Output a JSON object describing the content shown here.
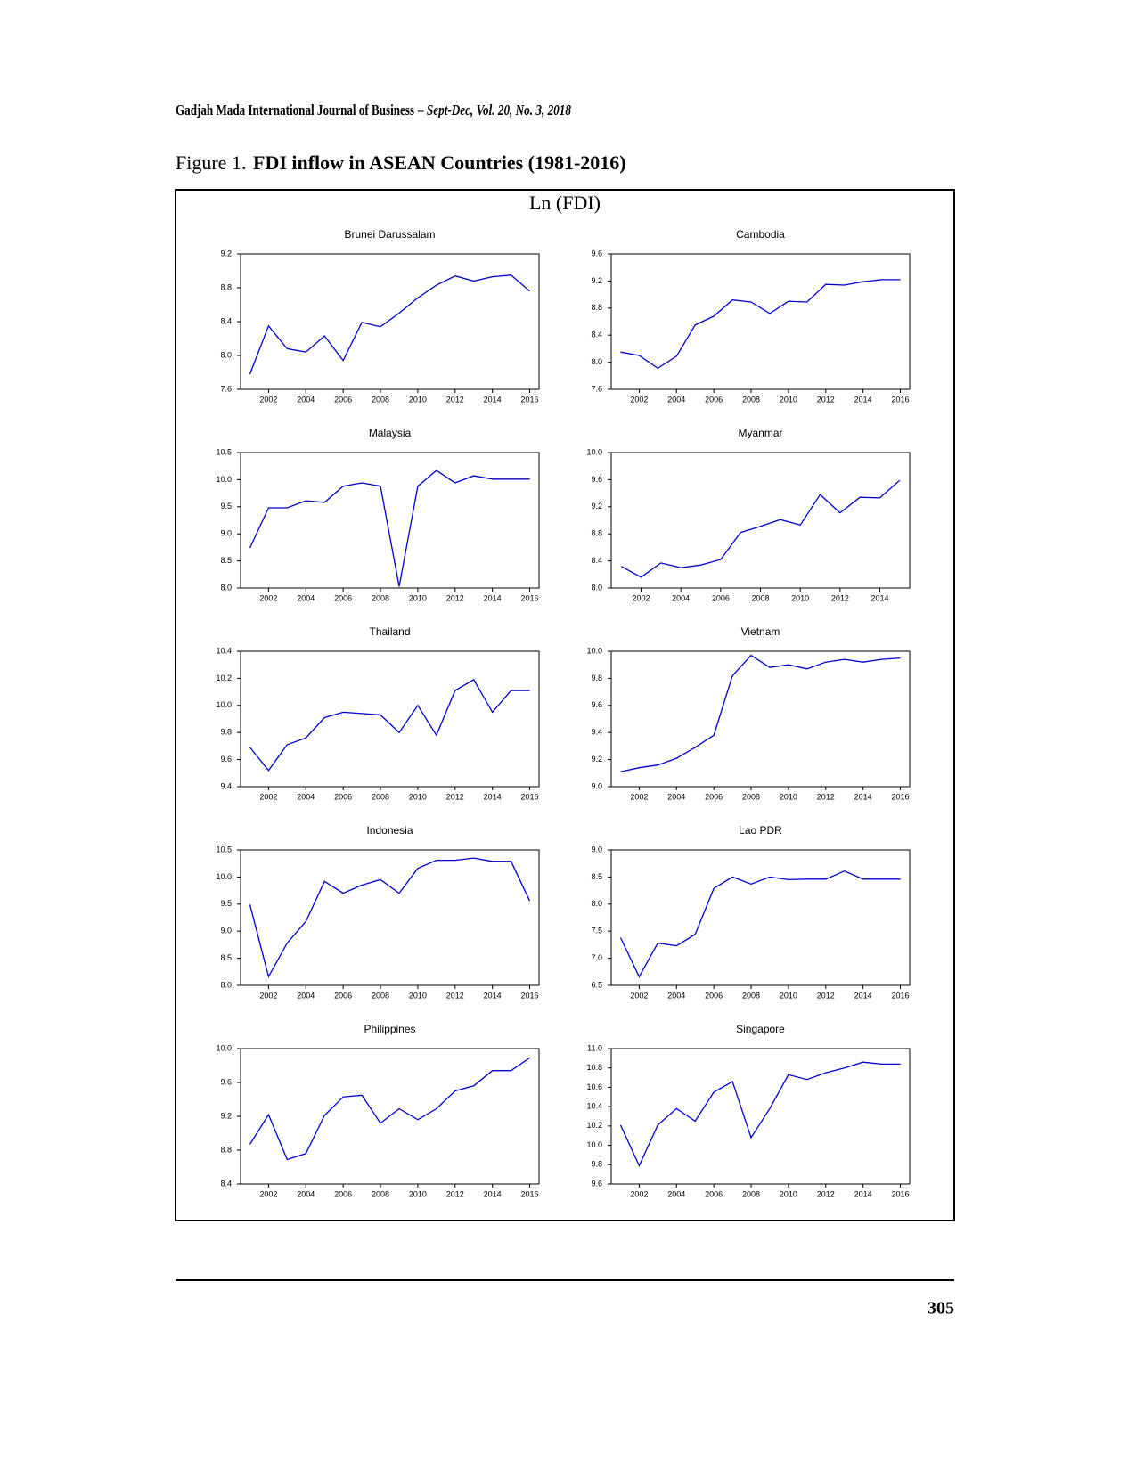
{
  "header": {
    "journal": "Gadjah Mada International Journal of Business",
    "issue": "– Sept-Dec, Vol. 20, No. 3, 2018"
  },
  "caption": {
    "label": "Figure 1.",
    "title": "FDI inflow in ASEAN Countries (1981-2016)"
  },
  "panel_title": "Ln (FDI)",
  "page_number": "305",
  "chart_data": [
    {
      "type": "line",
      "title": "Brunei Darussalam",
      "x": [
        2001,
        2002,
        2003,
        2004,
        2005,
        2006,
        2007,
        2008,
        2009,
        2010,
        2011,
        2012,
        2013,
        2014,
        2015,
        2016
      ],
      "series": [
        {
          "name": "Ln (FDI)",
          "color": "#0000cc",
          "values": [
            7.78,
            8.35,
            8.08,
            8.04,
            8.23,
            7.94,
            8.39,
            8.34,
            8.5,
            8.68,
            8.83,
            8.94,
            8.88,
            8.93,
            8.95,
            8.76
          ]
        }
      ],
      "xlim": [
        2000.5,
        2016.5
      ],
      "xticks": [
        2002,
        2004,
        2006,
        2008,
        2010,
        2012,
        2014,
        2016
      ],
      "ylim": [
        7.6,
        9.2
      ],
      "yticks": [
        7.6,
        {
          "value": 8,
          "label": "8.0"
        },
        8.4,
        8.8,
        9.2
      ]
    },
    {
      "type": "line",
      "title": "Cambodia",
      "x": [
        2001,
        2002,
        2003,
        2004,
        2005,
        2006,
        2007,
        2008,
        2009,
        2010,
        2011,
        2012,
        2013,
        2014,
        2015,
        2016
      ],
      "series": [
        {
          "name": "Ln (FDI)",
          "color": "#0000cc",
          "values": [
            8.15,
            8.1,
            7.91,
            8.09,
            8.55,
            8.68,
            8.92,
            8.89,
            8.72,
            8.9,
            8.89,
            9.15,
            9.14,
            9.19,
            9.22,
            9.22
          ]
        }
      ],
      "xlim": [
        2000.5,
        2016.5
      ],
      "xticks": [
        2002,
        2004,
        2006,
        2008,
        2010,
        2012,
        2014,
        2016
      ],
      "ylim": [
        7.6,
        9.6
      ],
      "yticks": [
        7.6,
        {
          "value": 8,
          "label": "8.0"
        },
        8.4,
        8.8,
        9.2,
        9.6
      ]
    },
    {
      "type": "line",
      "title": "Malaysia",
      "x": [
        2001,
        2002,
        2003,
        2004,
        2005,
        2006,
        2007,
        2008,
        2009,
        2010,
        2011,
        2012,
        2013,
        2014,
        2015,
        2016
      ],
      "series": [
        {
          "name": "Ln (FDI)",
          "color": "#0000cc",
          "values": [
            8.74,
            9.48,
            9.48,
            9.61,
            9.58,
            9.88,
            9.94,
            9.88,
            8.03,
            9.88,
            10.17,
            9.94,
            10.07,
            10.01,
            10.01,
            10.01
          ]
        }
      ],
      "xlim": [
        2000.5,
        2016.5
      ],
      "xticks": [
        2002,
        2004,
        2006,
        2008,
        2010,
        2012,
        2014,
        2016
      ],
      "ylim": [
        8,
        10.5
      ],
      "yticks": [
        {
          "value": 8,
          "label": "8.0"
        },
        8.5,
        {
          "value": 9,
          "label": "9.0"
        },
        9.5,
        {
          "value": 10,
          "label": "10.0"
        },
        10.5
      ]
    },
    {
      "type": "line",
      "title": "Myanmar",
      "x": [
        2001,
        2002,
        2003,
        2004,
        2005,
        2006,
        2007,
        2008,
        2009,
        2010,
        2011,
        2012,
        2013,
        2014,
        2015
      ],
      "series": [
        {
          "name": "Ln (FDI)",
          "color": "#0000cc",
          "values": [
            8.32,
            8.16,
            8.37,
            8.3,
            8.34,
            8.42,
            8.82,
            8.91,
            9.01,
            8.93,
            9.38,
            9.11,
            9.34,
            9.33,
            9.59
          ]
        }
      ],
      "xlim": [
        2000.5,
        2015.5
      ],
      "xticks": [
        2002,
        2004,
        2006,
        2008,
        2010,
        2012,
        2014
      ],
      "ylim": [
        8,
        10
      ],
      "yticks": [
        {
          "value": 8,
          "label": "8.0"
        },
        8.4,
        8.8,
        9.2,
        9.6,
        {
          "value": 10,
          "label": "10.0"
        }
      ]
    },
    {
      "type": "line",
      "title": "Thailand",
      "x": [
        2001,
        2002,
        2003,
        2004,
        2005,
        2006,
        2007,
        2008,
        2009,
        2010,
        2011,
        2012,
        2013,
        2014,
        2015,
        2016
      ],
      "series": [
        {
          "name": "Ln (FDI)",
          "color": "#0000cc",
          "values": [
            9.69,
            9.52,
            9.71,
            9.76,
            9.91,
            9.95,
            9.94,
            9.93,
            9.8,
            10,
            9.78,
            10.11,
            10.19,
            9.95,
            10.11,
            10.11
          ]
        }
      ],
      "xlim": [
        2000.5,
        2016.5
      ],
      "xticks": [
        2002,
        2004,
        2006,
        2008,
        2010,
        2012,
        2014,
        2016
      ],
      "ylim": [
        9.4,
        10.4
      ],
      "yticks": [
        9.4,
        9.6,
        9.8,
        {
          "value": 10,
          "label": "10.0"
        },
        10.2,
        10.4
      ]
    },
    {
      "type": "line",
      "title": "Vietnam",
      "x": [
        2001,
        2002,
        2003,
        2004,
        2005,
        2006,
        2007,
        2008,
        2009,
        2010,
        2011,
        2012,
        2013,
        2014,
        2015,
        2016
      ],
      "series": [
        {
          "name": "Ln (FDI)",
          "color": "#0000cc",
          "values": [
            9.11,
            9.14,
            9.16,
            9.21,
            9.29,
            9.38,
            9.82,
            9.97,
            9.88,
            9.9,
            9.87,
            9.92,
            9.94,
            9.92,
            9.94,
            9.95
          ]
        }
      ],
      "xlim": [
        2000.5,
        2016.5
      ],
      "xticks": [
        2002,
        2004,
        2006,
        2008,
        2010,
        2012,
        2014,
        2016
      ],
      "ylim": [
        9,
        10
      ],
      "yticks": [
        {
          "value": 9,
          "label": "9.0"
        },
        9.2,
        9.4,
        9.6,
        9.8,
        {
          "value": 10,
          "label": "10.0"
        }
      ]
    },
    {
      "type": "line",
      "title": "Indonesia",
      "x": [
        2001,
        2002,
        2003,
        2004,
        2005,
        2006,
        2007,
        2008,
        2009,
        2010,
        2011,
        2012,
        2013,
        2014,
        2015,
        2016
      ],
      "series": [
        {
          "name": "Ln (FDI)",
          "color": "#0000cc",
          "values": [
            9.49,
            8.16,
            8.78,
            9.18,
            9.92,
            9.7,
            9.85,
            9.95,
            9.7,
            10.16,
            10.31,
            10.31,
            10.35,
            10.29,
            10.29,
            9.56
          ]
        }
      ],
      "xlim": [
        2000.5,
        2016.5
      ],
      "xticks": [
        2002,
        2004,
        2006,
        2008,
        2010,
        2012,
        2014,
        2016
      ],
      "ylim": [
        8,
        10.5
      ],
      "yticks": [
        {
          "value": 8,
          "label": "8.0"
        },
        8.5,
        {
          "value": 9,
          "label": "9.0"
        },
        9.5,
        {
          "value": 10,
          "label": "10.0"
        },
        10.5
      ]
    },
    {
      "type": "line",
      "title": "Lao PDR",
      "x": [
        2001,
        2002,
        2003,
        2004,
        2005,
        2006,
        2007,
        2008,
        2009,
        2010,
        2011,
        2012,
        2013,
        2014,
        2015,
        2016
      ],
      "series": [
        {
          "name": "Ln (FDI)",
          "color": "#0000cc",
          "values": [
            7.38,
            6.66,
            7.28,
            7.23,
            7.44,
            8.29,
            8.5,
            8.37,
            8.5,
            8.45,
            8.46,
            8.46,
            8.61,
            8.46,
            8.46,
            8.46
          ]
        }
      ],
      "xlim": [
        2000.5,
        2016.5
      ],
      "xticks": [
        2002,
        2004,
        2006,
        2008,
        2010,
        2012,
        2014,
        2016
      ],
      "ylim": [
        6.5,
        9
      ],
      "yticks": [
        6.5,
        {
          "value": 7,
          "label": "7.0"
        },
        7.5,
        {
          "value": 8,
          "label": "8.0"
        },
        8.5,
        {
          "value": 9,
          "label": "9.0"
        }
      ]
    },
    {
      "type": "line",
      "title": "Philippines",
      "x": [
        2001,
        2002,
        2003,
        2004,
        2005,
        2006,
        2007,
        2008,
        2009,
        2010,
        2011,
        2012,
        2013,
        2014,
        2015,
        2016
      ],
      "series": [
        {
          "name": "Ln (FDI)",
          "color": "#0000cc",
          "values": [
            8.87,
            9.22,
            8.69,
            8.76,
            9.21,
            9.43,
            9.45,
            9.12,
            9.29,
            9.16,
            9.29,
            9.5,
            9.56,
            9.74,
            9.74,
            9.89
          ]
        }
      ],
      "xlim": [
        2000.5,
        2016.5
      ],
      "xticks": [
        2002,
        2004,
        2006,
        2008,
        2010,
        2012,
        2014,
        2016
      ],
      "ylim": [
        8.4,
        10
      ],
      "yticks": [
        8.4,
        8.8,
        9.2,
        9.6,
        {
          "value": 10,
          "label": "10.0"
        }
      ]
    },
    {
      "type": "line",
      "title": "Singapore",
      "x": [
        2001,
        2002,
        2003,
        2004,
        2005,
        2006,
        2007,
        2008,
        2009,
        2010,
        2011,
        2012,
        2013,
        2014,
        2015,
        2016
      ],
      "series": [
        {
          "name": "Ln (FDI)",
          "color": "#0000cc",
          "values": [
            10.21,
            9.79,
            10.21,
            10.38,
            10.25,
            10.55,
            10.66,
            10.08,
            10.38,
            10.73,
            10.68,
            10.75,
            10.8,
            10.86,
            10.84,
            10.84
          ]
        }
      ],
      "xlim": [
        2000.5,
        2016.5
      ],
      "xticks": [
        2002,
        2004,
        2006,
        2008,
        2010,
        2012,
        2014,
        2016
      ],
      "ylim": [
        9.6,
        11
      ],
      "yticks": [
        9.6,
        9.8,
        {
          "value": 10,
          "label": "10.0"
        },
        10.2,
        10.4,
        10.6,
        10.8,
        {
          "value": 11,
          "label": "11.0"
        }
      ]
    }
  ]
}
